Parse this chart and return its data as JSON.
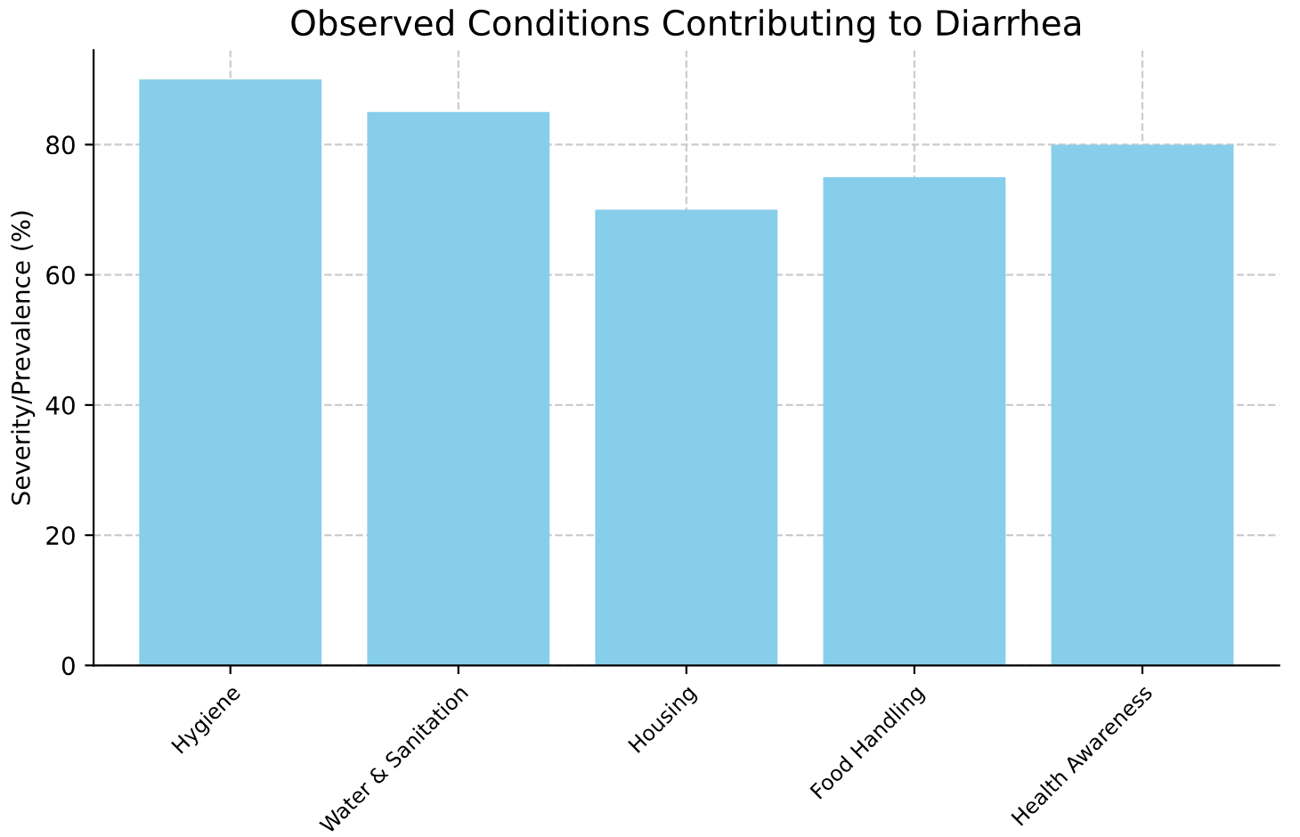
{
  "chart_data": {
    "type": "bar",
    "title": "Observed Conditions Contributing to Diarrhea",
    "ylabel": "Severity/Prevalence (%)",
    "categories": [
      "Hygiene",
      "Water & Sanitation",
      "Housing",
      "Food Handling",
      "Health Awareness"
    ],
    "values": [
      90,
      85,
      70,
      75,
      80
    ],
    "color": "#87ceeb",
    "ylim": [
      0,
      94.5
    ],
    "yticks": [
      0,
      20,
      40,
      60,
      80
    ],
    "grid": true,
    "line_style": "dashed"
  }
}
